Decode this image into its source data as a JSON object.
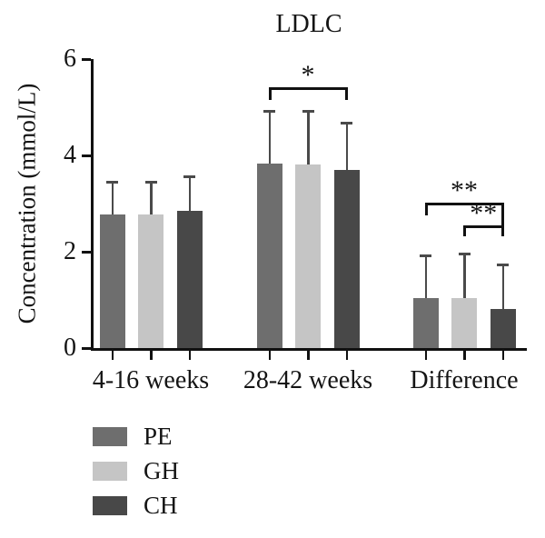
{
  "page": {
    "background": "#ffffff"
  },
  "chart_data": {
    "type": "bar",
    "title": "LDLC",
    "xlabel": "",
    "ylabel": "Concentration (mmol/L)",
    "ylim": [
      0,
      6
    ],
    "yticks": [
      0,
      2,
      4,
      6
    ],
    "grid": false,
    "error_bars": "upper-only",
    "legend_position": "below-left",
    "axis_color": "#111111",
    "error_bar_color": "#4a4a4a",
    "categories": [
      "4-16 weeks",
      "28-42 weeks",
      "Difference"
    ],
    "series": [
      {
        "name": "PE",
        "color": "#6e6e6e",
        "values": [
          2.78,
          3.83,
          1.03
        ],
        "error_top": [
          3.47,
          4.94,
          1.95
        ]
      },
      {
        "name": "GH",
        "color": "#c5c5c5",
        "values": [
          2.78,
          3.82,
          1.04
        ],
        "error_top": [
          3.47,
          4.94,
          1.99
        ]
      },
      {
        "name": "CH",
        "color": "#484848",
        "values": [
          2.84,
          3.7,
          0.81
        ],
        "error_top": [
          3.58,
          4.7,
          1.76
        ]
      }
    ],
    "annotations": [
      {
        "label": "*",
        "category": "28-42 weeks",
        "from": "PE",
        "to": "CH"
      },
      {
        "label": "**",
        "category": "Difference",
        "from": "PE",
        "to": "CH"
      },
      {
        "label": "**",
        "category": "Difference",
        "from": "GH",
        "to": "CH"
      }
    ]
  }
}
